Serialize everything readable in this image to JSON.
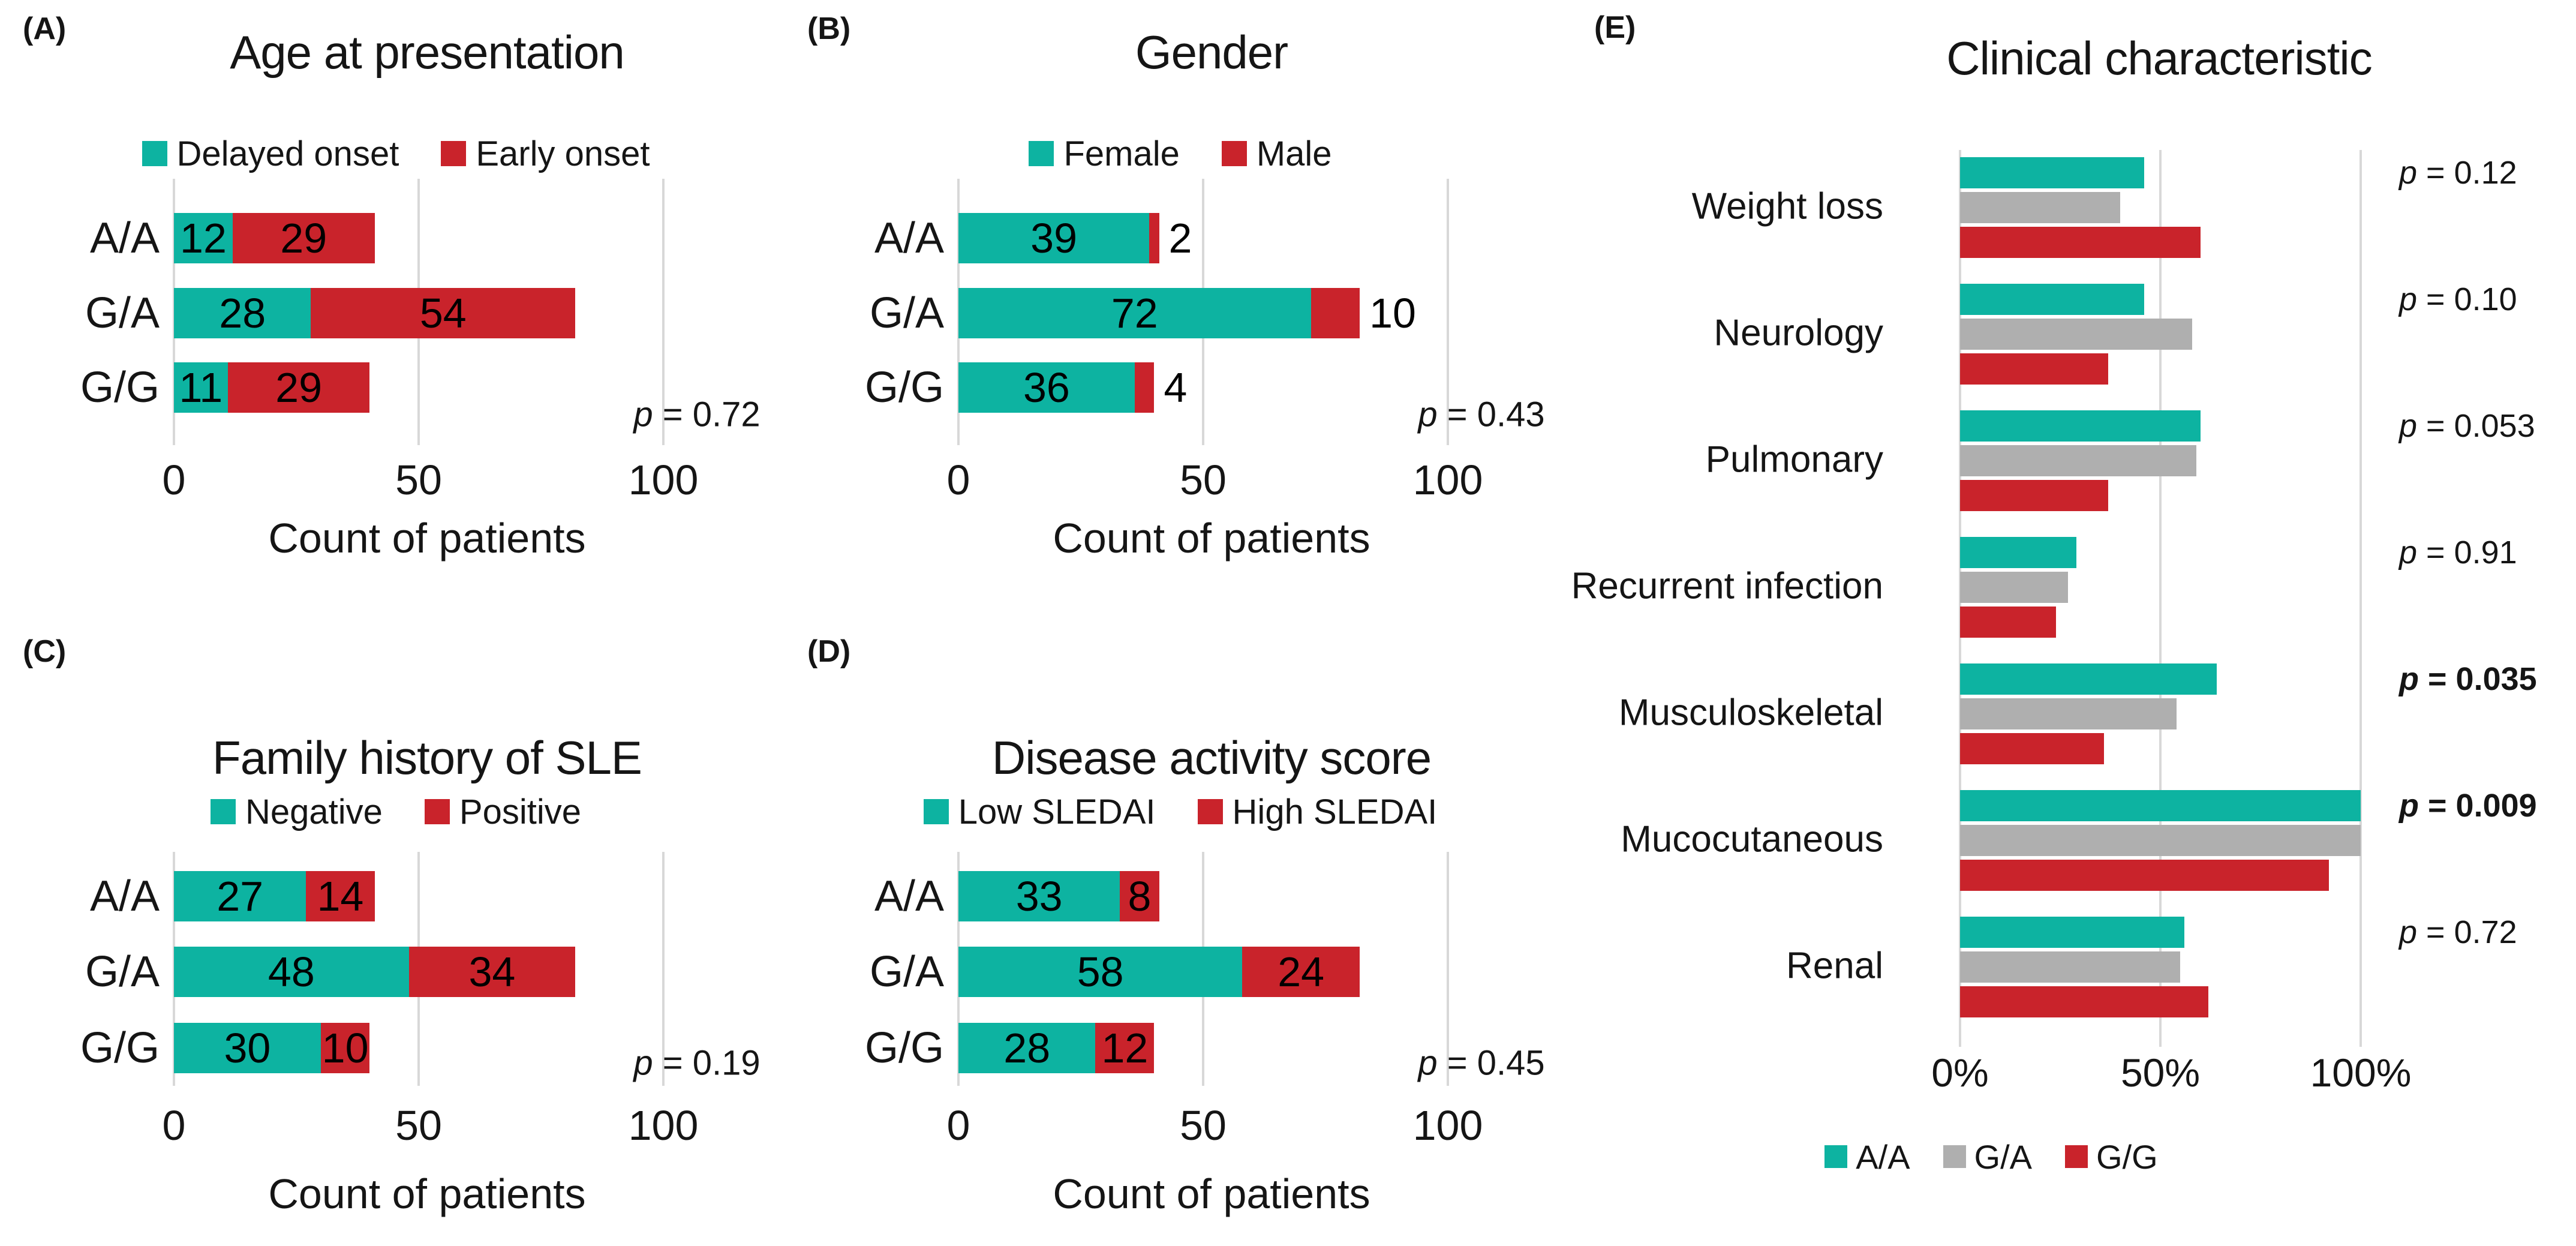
{
  "colors": {
    "teal": "#0DB3A1",
    "red": "#C9232B",
    "gray": "#AFAFAF",
    "grid": "#D8D8D8",
    "text": "#151515"
  },
  "chart_data": [
    {
      "panel": "(A)",
      "type": "bar",
      "variant": "stacked-horizontal",
      "title": "Age at presentation",
      "categories": [
        "A/A",
        "G/A",
        "G/G"
      ],
      "series": [
        {
          "name": "Delayed onset",
          "color": "teal",
          "values": [
            12,
            28,
            11
          ]
        },
        {
          "name": "Early onset",
          "color": "red",
          "values": [
            29,
            54,
            29
          ],
          "labels_outside": [
            false,
            false,
            false
          ]
        }
      ],
      "xlabel": "Count of patients",
      "x_ticks": [
        "0",
        "50",
        "100"
      ],
      "x_tick_values": [
        0,
        50,
        100
      ],
      "xlim": [
        0,
        108
      ],
      "grid": true,
      "legend_position": "top",
      "p_value": {
        "prefix": "p",
        "rest": " = 0.72",
        "bold": false
      }
    },
    {
      "panel": "(B)",
      "type": "bar",
      "variant": "stacked-horizontal",
      "title": "Gender",
      "categories": [
        "A/A",
        "G/A",
        "G/G"
      ],
      "series": [
        {
          "name": "Female",
          "color": "teal",
          "values": [
            39,
            72,
            36
          ]
        },
        {
          "name": "Male",
          "color": "red",
          "values": [
            2,
            10,
            4
          ],
          "labels_outside": [
            true,
            true,
            true
          ]
        }
      ],
      "xlabel": "Count of patients",
      "x_ticks": [
        "0",
        "50",
        "100"
      ],
      "x_tick_values": [
        0,
        50,
        100
      ],
      "xlim": [
        0,
        108
      ],
      "grid": true,
      "legend_position": "top",
      "p_value": {
        "prefix": "p",
        "rest": " = 0.43",
        "bold": false
      }
    },
    {
      "panel": "(C)",
      "type": "bar",
      "variant": "stacked-horizontal",
      "title": "Family history of SLE",
      "categories": [
        "A/A",
        "G/A",
        "G/G"
      ],
      "series": [
        {
          "name": "Negative",
          "color": "teal",
          "values": [
            27,
            48,
            30
          ]
        },
        {
          "name": "Positive",
          "color": "red",
          "values": [
            14,
            34,
            10
          ],
          "labels_outside": [
            false,
            false,
            false
          ]
        }
      ],
      "xlabel": "Count of patients",
      "x_ticks": [
        "0",
        "50",
        "100"
      ],
      "x_tick_values": [
        0,
        50,
        100
      ],
      "xlim": [
        0,
        108
      ],
      "grid": true,
      "legend_position": "top",
      "p_value": {
        "prefix": "p",
        "rest": " = 0.19",
        "bold": false
      }
    },
    {
      "panel": "(D)",
      "type": "bar",
      "variant": "stacked-horizontal",
      "title": "Disease activity score",
      "categories": [
        "A/A",
        "G/A",
        "G/G"
      ],
      "series": [
        {
          "name": "Low SLEDAI",
          "color": "teal",
          "values": [
            33,
            58,
            28
          ]
        },
        {
          "name": "High SLEDAI",
          "color": "red",
          "values": [
            8,
            24,
            12
          ],
          "labels_outside": [
            false,
            false,
            false
          ]
        }
      ],
      "xlabel": "Count of patients",
      "x_ticks": [
        "0",
        "50",
        "100"
      ],
      "x_tick_values": [
        0,
        50,
        100
      ],
      "xlim": [
        0,
        108
      ],
      "grid": true,
      "legend_position": "top",
      "p_value": {
        "prefix": "p",
        "rest": " = 0.45",
        "bold": false
      }
    },
    {
      "panel": "(E)",
      "type": "bar",
      "variant": "grouped-horizontal",
      "title": "Clinical characteristic",
      "categories": [
        "Weight loss",
        "Neurology",
        "Pulmonary",
        "Recurrent infection",
        "Musculoskeletal",
        "Mucocutaneous",
        "Renal"
      ],
      "series": [
        {
          "name": "A/A",
          "color": "teal",
          "values": [
            46,
            46,
            60,
            29,
            64,
            100,
            56
          ]
        },
        {
          "name": "G/A",
          "color": "gray",
          "values": [
            40,
            58,
            59,
            27,
            54,
            100,
            55
          ]
        },
        {
          "name": "G/G",
          "color": "red",
          "values": [
            60,
            37,
            37,
            24,
            36,
            92,
            62
          ]
        }
      ],
      "value_unit": "%",
      "xlabel": "",
      "x_ticks": [
        "0%",
        "50%",
        "100%"
      ],
      "x_tick_values": [
        0,
        50,
        100
      ],
      "xlim": [
        0,
        105
      ],
      "grid": true,
      "legend_position": "bottom",
      "p_values": [
        {
          "prefix": "p",
          "rest": " = 0.12",
          "bold": false
        },
        {
          "prefix": "p",
          "rest": " = 0.10",
          "bold": false
        },
        {
          "prefix": "p",
          "rest": " = 0.053",
          "bold": false
        },
        {
          "prefix": "p",
          "rest": " = 0.91",
          "bold": false
        },
        {
          "prefix": "p",
          "rest": " = 0.035",
          "bold": true
        },
        {
          "prefix": "p",
          "rest": " = 0.009",
          "bold": true
        },
        {
          "prefix": "p",
          "rest": " = 0.72",
          "bold": false
        }
      ]
    }
  ]
}
